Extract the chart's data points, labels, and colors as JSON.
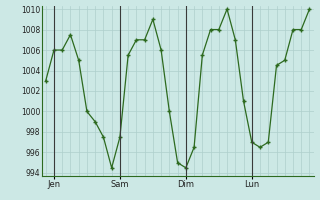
{
  "x_values": [
    0,
    1,
    2,
    3,
    4,
    5,
    6,
    7,
    8,
    9,
    10,
    11,
    12,
    13,
    14,
    15,
    16,
    17,
    18,
    19,
    20,
    21,
    22,
    23,
    24,
    25,
    26,
    27,
    28,
    29,
    30,
    31,
    32
  ],
  "y_values": [
    1003,
    1006,
    1006,
    1007.5,
    1005,
    1000,
    999,
    997.5,
    994.5,
    997.5,
    1005.5,
    1007,
    1007,
    1009,
    1006,
    1000,
    995,
    994.5,
    996.5,
    1005.5,
    1008,
    1008,
    1010,
    1007,
    1001,
    997,
    996.5,
    997,
    1004.5,
    1005,
    1008,
    1008,
    1010
  ],
  "vline_positions": [
    1,
    9,
    17,
    25
  ],
  "tick_labels": [
    "Jen",
    "Sam",
    "Dim",
    "Lun"
  ],
  "ytick_min": 994,
  "ytick_max": 1010,
  "ytick_step": 2,
  "line_color": "#2d6a1f",
  "marker_color": "#2d6a1f",
  "bg_color": "#cce8e5",
  "grid_color": "#aecfcc",
  "figsize": [
    3.2,
    2.0
  ],
  "dpi": 100
}
